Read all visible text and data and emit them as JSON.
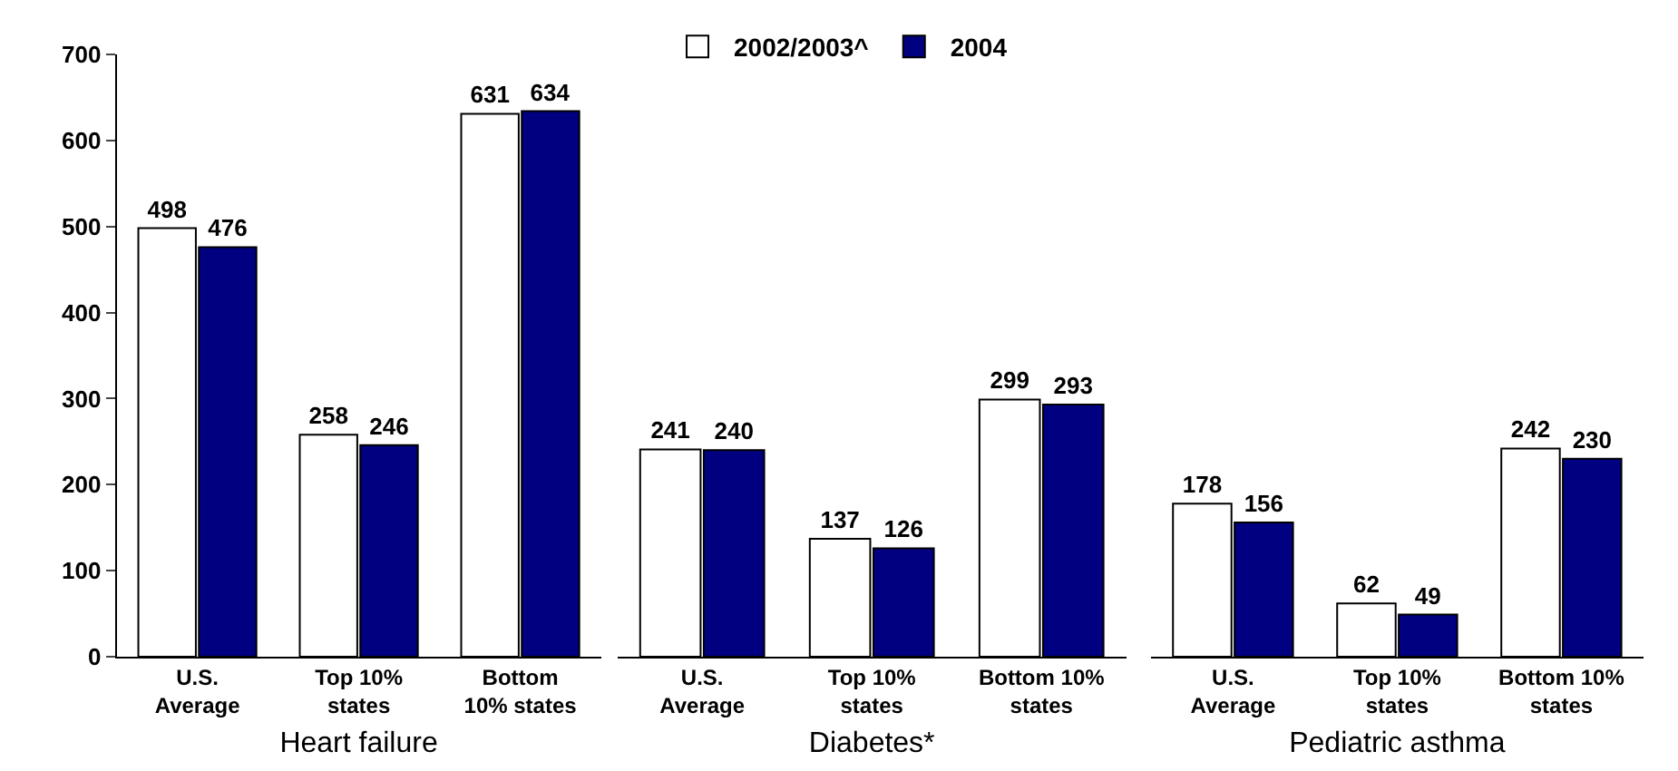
{
  "chart_data": [
    {
      "type": "bar",
      "xlabel": "Heart failure",
      "categories": [
        "U.S.\nAverage",
        "Top 10%\nstates",
        "Bottom\n10% states"
      ],
      "ylim": [
        0,
        700
      ],
      "yticks": [
        0,
        100,
        200,
        300,
        400,
        500,
        600,
        700
      ],
      "data_labels": true,
      "legend": "top",
      "series": [
        {
          "name": "2002/2003^",
          "color": "#ffffff",
          "values": [
            498,
            258,
            631
          ]
        },
        {
          "name": "2004",
          "color": "#000080",
          "values": [
            476,
            246,
            634
          ]
        }
      ]
    },
    {
      "type": "bar",
      "xlabel": "Diabetes*",
      "categories": [
        "U.S.\nAverage",
        "Top 10%\nstates",
        "Bottom 10%\nstates"
      ],
      "ylim": [
        0,
        700
      ],
      "data_labels": true,
      "tick_labels": "x",
      "series": [
        {
          "color": "#ffffff",
          "values": [
            241,
            137,
            299
          ]
        },
        {
          "color": "#000080",
          "values": [
            240,
            126,
            293
          ]
        }
      ]
    },
    {
      "type": "bar",
      "xlabel": "Pediatric asthma",
      "categories": [
        "U.S.\nAverage",
        "Top 10%\nstates",
        "Bottom 10%\nstates"
      ],
      "ylim": [
        0,
        700
      ],
      "data_labels": true,
      "tick_labels": "x",
      "series": [
        {
          "color": "#ffffff",
          "values": [
            178,
            62,
            242
          ]
        },
        {
          "color": "#000080",
          "values": [
            156,
            49,
            230
          ]
        }
      ]
    }
  ]
}
